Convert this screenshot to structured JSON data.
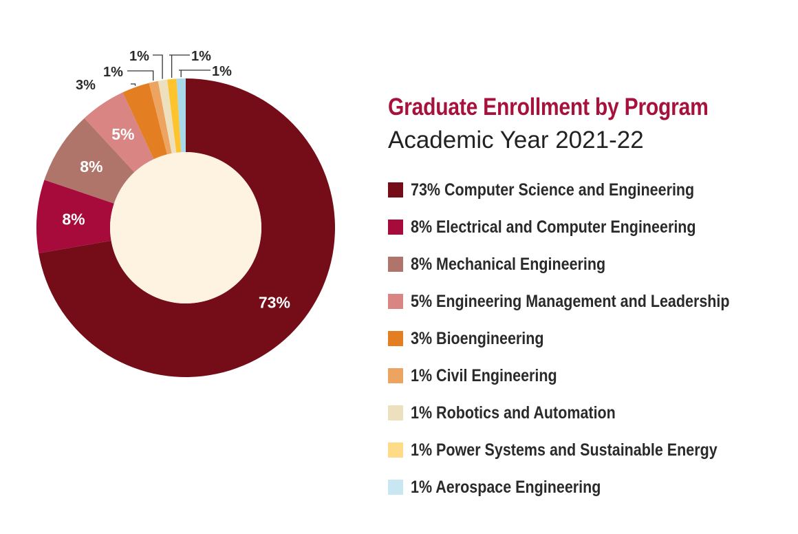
{
  "chart_data": {
    "type": "pie",
    "subtype": "donut",
    "title": "Graduate Enrollment by Program",
    "subtitle": "Academic Year 2021-22",
    "legend_position": "right",
    "slices": [
      {
        "label": "Computer Science and Engineering",
        "value": 73,
        "value_label": "73%",
        "legend": "73% Computer Science and Engineering",
        "color": "#740d17"
      },
      {
        "label": "Electrical and Computer Engineering",
        "value": 8,
        "value_label": "8%",
        "legend": "8% Electrical and Computer Engineering",
        "color": "#a60b3b"
      },
      {
        "label": "Mechanical Engineering",
        "value": 8,
        "value_label": "8%",
        "legend": "8% Mechanical Engineering",
        "color": "#b0756a"
      },
      {
        "label": "Engineering Management and Leadership",
        "value": 5,
        "value_label": "5%",
        "legend": "5% Engineering Management and Leadership",
        "color": "#d98583"
      },
      {
        "label": "Bioengineering",
        "value": 3,
        "value_label": "3%",
        "legend": "3% Bioengineering",
        "color": "#e37e22"
      },
      {
        "label": "Civil Engineering",
        "value": 1,
        "value_label": "1%",
        "legend": "1% Civil Engineering",
        "color": "#eda460"
      },
      {
        "label": "Robotics and Automation",
        "value": 1,
        "value_label": "1%",
        "legend": "1% Robotics and Automation",
        "color": "#ede0bf"
      },
      {
        "label": "Power Systems and Sustainable Energy",
        "value": 1,
        "value_label": "1%",
        "legend": "1% Power Systems and Sustainable Energy",
        "color": "#fdc42e"
      },
      {
        "label": "Aerospace Engineering",
        "value": 1,
        "value_label": "1%",
        "legend": "1% Aerospace Engineering",
        "color": "#a8d8ea"
      }
    ],
    "center_color": "#fdf3e0"
  }
}
